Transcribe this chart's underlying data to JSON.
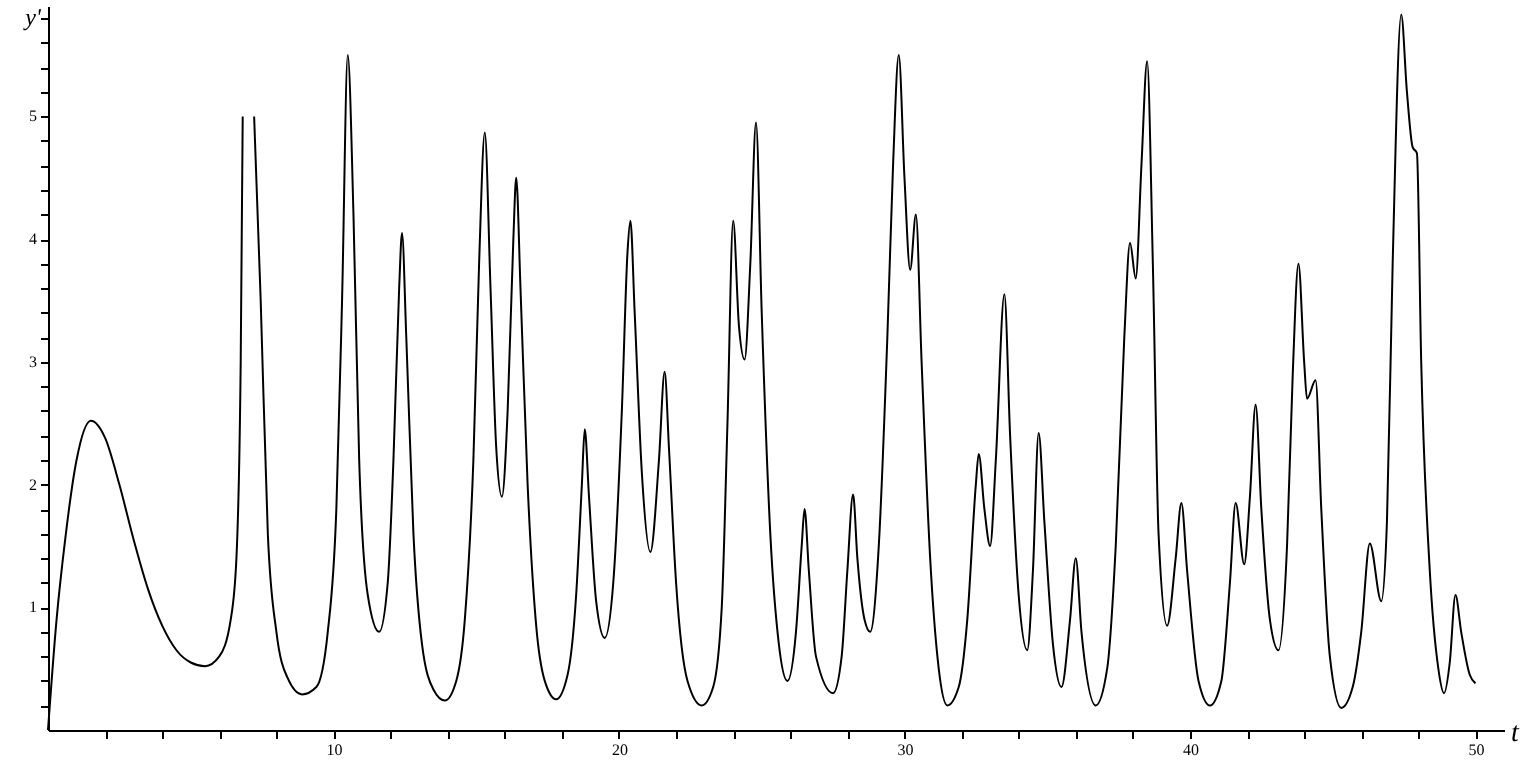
{
  "chart_data": {
    "type": "line",
    "xlabel": "t",
    "ylabel": "y'",
    "color": "#000000",
    "line_style": "solid",
    "grid": false,
    "marker": "none",
    "xlim": [
      0,
      51
    ],
    "ylim": [
      0,
      5.9
    ],
    "xticks": [
      {
        "value": 2,
        "label": null
      },
      {
        "value": 4,
        "label": null
      },
      {
        "value": 6,
        "label": null
      },
      {
        "value": 8,
        "label": null
      },
      10,
      {
        "value": 12,
        "label": null
      },
      {
        "value": 14,
        "label": null
      },
      {
        "value": 16,
        "label": null
      },
      {
        "value": 18,
        "label": null
      },
      20,
      {
        "value": 22,
        "label": null
      },
      {
        "value": 24,
        "label": null
      },
      {
        "value": 26,
        "label": null
      },
      {
        "value": 28,
        "label": null
      },
      30,
      {
        "value": 32,
        "label": null
      },
      {
        "value": 34,
        "label": null
      },
      {
        "value": 36,
        "label": null
      },
      {
        "value": 38,
        "label": null
      },
      40,
      {
        "value": 42,
        "label": null
      },
      {
        "value": 44,
        "label": null
      },
      {
        "value": 46,
        "label": null
      },
      {
        "value": 48,
        "label": null
      },
      50
    ],
    "yticks": [
      {
        "value": 0.2,
        "label": null
      },
      {
        "value": 0.4,
        "label": null
      },
      {
        "value": 0.6,
        "label": null
      },
      {
        "value": 0.8,
        "label": null
      },
      1,
      {
        "value": 1.2,
        "label": null
      },
      {
        "value": 1.4,
        "label": null
      },
      {
        "value": 1.6,
        "label": null
      },
      {
        "value": 1.8,
        "label": null
      },
      2,
      {
        "value": 2.2,
        "label": null
      },
      {
        "value": 2.4,
        "label": null
      },
      {
        "value": 2.6,
        "label": null
      },
      {
        "value": 2.8,
        "label": null
      },
      3,
      {
        "value": 3.2,
        "label": null
      },
      {
        "value": 3.4,
        "label": null
      },
      {
        "value": 3.6,
        "label": null
      },
      {
        "value": 3.8,
        "label": null
      },
      4,
      {
        "value": 4.2,
        "label": null
      },
      {
        "value": 4.4,
        "label": null
      },
      {
        "value": 4.6,
        "label": null
      },
      {
        "value": 4.8,
        "label": null
      },
      5,
      {
        "value": 5.2,
        "label": null
      },
      {
        "value": 5.4,
        "label": null
      },
      {
        "value": 5.6,
        "label": null
      },
      {
        "value": 5.8,
        "label": null
      }
    ],
    "x": [
      0,
      0.3,
      0.6,
      1.0,
      1.5,
      2.0,
      2.5,
      3.0,
      3.5,
      4.0,
      4.5,
      5.0,
      5.5,
      6.0,
      6.4,
      6.6,
      6.75,
      6.82,
      7.05,
      7.22,
      7.45,
      7.7,
      8.0,
      8.4,
      8.9,
      9.4,
      9.8,
      10.1,
      10.3,
      10.5,
      10.7,
      10.9,
      11.2,
      11.6,
      11.9,
      12.1,
      12.3,
      12.4,
      12.55,
      12.8,
      13.1,
      13.5,
      13.9,
      14.3,
      14.6,
      14.9,
      15.1,
      15.3,
      15.5,
      15.7,
      15.9,
      16.1,
      16.3,
      16.4,
      16.55,
      16.8,
      17.1,
      17.4,
      17.8,
      18.2,
      18.5,
      18.7,
      18.8,
      18.95,
      19.2,
      19.5,
      19.8,
      20.1,
      20.3,
      20.4,
      20.55,
      20.8,
      21.1,
      21.4,
      21.6,
      21.75,
      22.0,
      22.4,
      22.9,
      23.3,
      23.6,
      23.8,
      24.0,
      24.2,
      24.4,
      24.6,
      24.8,
      25.0,
      25.3,
      25.6,
      25.9,
      26.2,
      26.4,
      26.5,
      26.65,
      26.9,
      27.5,
      27.8,
      28.0,
      28.2,
      28.35,
      28.6,
      28.8,
      29.1,
      29.4,
      29.6,
      29.8,
      30.0,
      30.2,
      30.4,
      30.6,
      30.9,
      31.2,
      31.5,
      31.9,
      32.2,
      32.5,
      32.6,
      32.8,
      33.0,
      33.2,
      33.5,
      33.7,
      34.0,
      34.3,
      34.5,
      34.7,
      34.9,
      35.2,
      35.5,
      35.8,
      36.0,
      36.2,
      36.7,
      37.1,
      37.4,
      37.7,
      37.9,
      38.1,
      38.3,
      38.5,
      38.7,
      38.9,
      39.2,
      39.5,
      39.7,
      39.9,
      40.3,
      40.7,
      41.1,
      41.4,
      41.6,
      41.9,
      42.1,
      42.3,
      42.5,
      42.8,
      43.1,
      43.4,
      43.6,
      43.8,
      44.0,
      44.1,
      44.4,
      44.6,
      44.9,
      45.3,
      45.7,
      46.0,
      46.3,
      46.7,
      46.9,
      47.1,
      47.4,
      47.6,
      47.8,
      47.95,
      48.1,
      48.4,
      48.7,
      48.9,
      49.1,
      49.3,
      49.5,
      49.8,
      50.0
    ],
    "values": [
      0,
      0.9,
      1.55,
      2.2,
      2.52,
      2.38,
      2.0,
      1.55,
      1.15,
      0.85,
      0.65,
      0.55,
      0.52,
      0.6,
      0.9,
      1.4,
      3.0,
      5.0,
      null,
      5.0,
      3.5,
      1.6,
      0.8,
      0.42,
      0.29,
      0.35,
      0.8,
      1.8,
      3.5,
      5.5,
      4.2,
      2.2,
      1.1,
      0.8,
      1.2,
      2.2,
      3.6,
      4.05,
      3.2,
      1.6,
      0.7,
      0.33,
      0.24,
      0.4,
      0.9,
      2.2,
      3.8,
      4.87,
      3.6,
      2.3,
      1.9,
      2.6,
      4.0,
      4.5,
      3.6,
      2.0,
      0.85,
      0.4,
      0.25,
      0.45,
      1.1,
      2.0,
      2.45,
      1.9,
      1.05,
      0.75,
      1.2,
      2.6,
      3.9,
      4.15,
      3.4,
      2.1,
      1.45,
      2.2,
      2.92,
      2.3,
      1.2,
      0.4,
      0.2,
      0.35,
      1.0,
      2.5,
      4.15,
      3.3,
      3.02,
      3.8,
      4.95,
      3.4,
      1.6,
      0.7,
      0.4,
      0.8,
      1.5,
      1.8,
      1.3,
      0.6,
      0.3,
      0.6,
      1.3,
      1.92,
      1.4,
      0.9,
      0.8,
      1.5,
      3.2,
      4.6,
      5.5,
      4.5,
      3.75,
      4.2,
      3.0,
      1.4,
      0.5,
      0.2,
      0.35,
      0.9,
      2.0,
      2.25,
      1.8,
      1.5,
      2.2,
      3.55,
      2.4,
      1.1,
      0.65,
      1.3,
      2.42,
      1.7,
      0.7,
      0.35,
      0.9,
      1.4,
      0.8,
      0.2,
      0.5,
      1.5,
      3.2,
      3.97,
      3.68,
      4.6,
      5.45,
      3.8,
      1.6,
      0.85,
      1.4,
      1.85,
      1.3,
      0.4,
      0.2,
      0.4,
      1.2,
      1.85,
      1.35,
      1.9,
      2.65,
      1.8,
      0.9,
      0.65,
      1.5,
      2.9,
      3.8,
      3.0,
      2.7,
      2.85,
      1.8,
      0.6,
      0.18,
      0.35,
      0.8,
      1.52,
      1.05,
      1.7,
      3.8,
      5.83,
      5.2,
      4.75,
      4.7,
      3.0,
      1.3,
      0.5,
      0.3,
      0.55,
      1.1,
      0.8,
      0.45,
      0.38
    ]
  }
}
